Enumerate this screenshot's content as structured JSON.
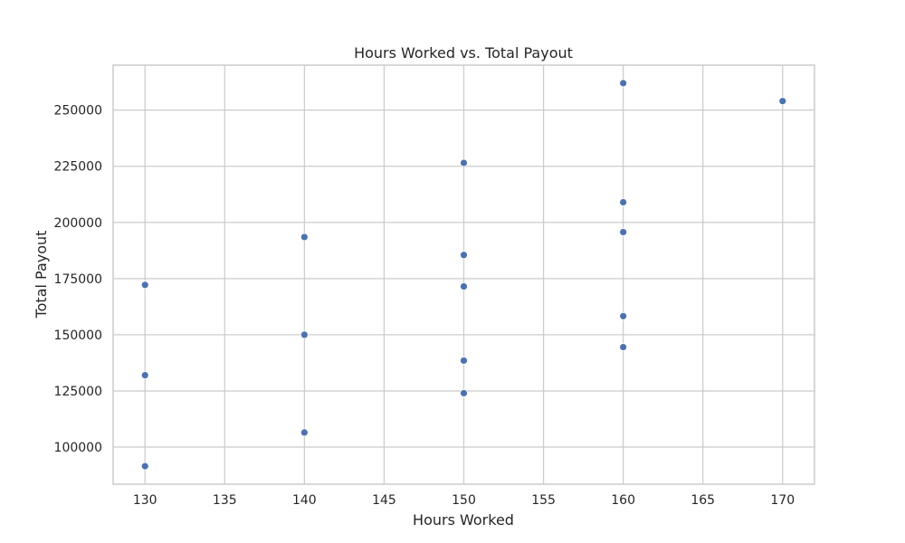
{
  "chart_data": {
    "type": "scatter",
    "title": "Hours Worked vs. Total Payout",
    "xlabel": "Hours Worked",
    "ylabel": "Total Payout",
    "xlim": [
      128,
      172
    ],
    "ylim": [
      83500,
      270000
    ],
    "xticks": [
      130,
      135,
      140,
      145,
      150,
      155,
      160,
      165,
      170
    ],
    "yticks": [
      100000,
      125000,
      150000,
      175000,
      200000,
      225000,
      250000
    ],
    "grid": true,
    "legend": "none",
    "marker_color": "#4c72b0",
    "points": [
      {
        "x": 130,
        "y": 91500
      },
      {
        "x": 130,
        "y": 132000
      },
      {
        "x": 130,
        "y": 172200
      },
      {
        "x": 140,
        "y": 106500
      },
      {
        "x": 140,
        "y": 150000
      },
      {
        "x": 140,
        "y": 193500
      },
      {
        "x": 150,
        "y": 124000
      },
      {
        "x": 150,
        "y": 138500
      },
      {
        "x": 150,
        "y": 171500
      },
      {
        "x": 150,
        "y": 185500
      },
      {
        "x": 150,
        "y": 226500
      },
      {
        "x": 160,
        "y": 144500
      },
      {
        "x": 160,
        "y": 158300
      },
      {
        "x": 160,
        "y": 195700
      },
      {
        "x": 160,
        "y": 209000
      },
      {
        "x": 160,
        "y": 262000
      },
      {
        "x": 170,
        "y": 254000
      }
    ]
  }
}
